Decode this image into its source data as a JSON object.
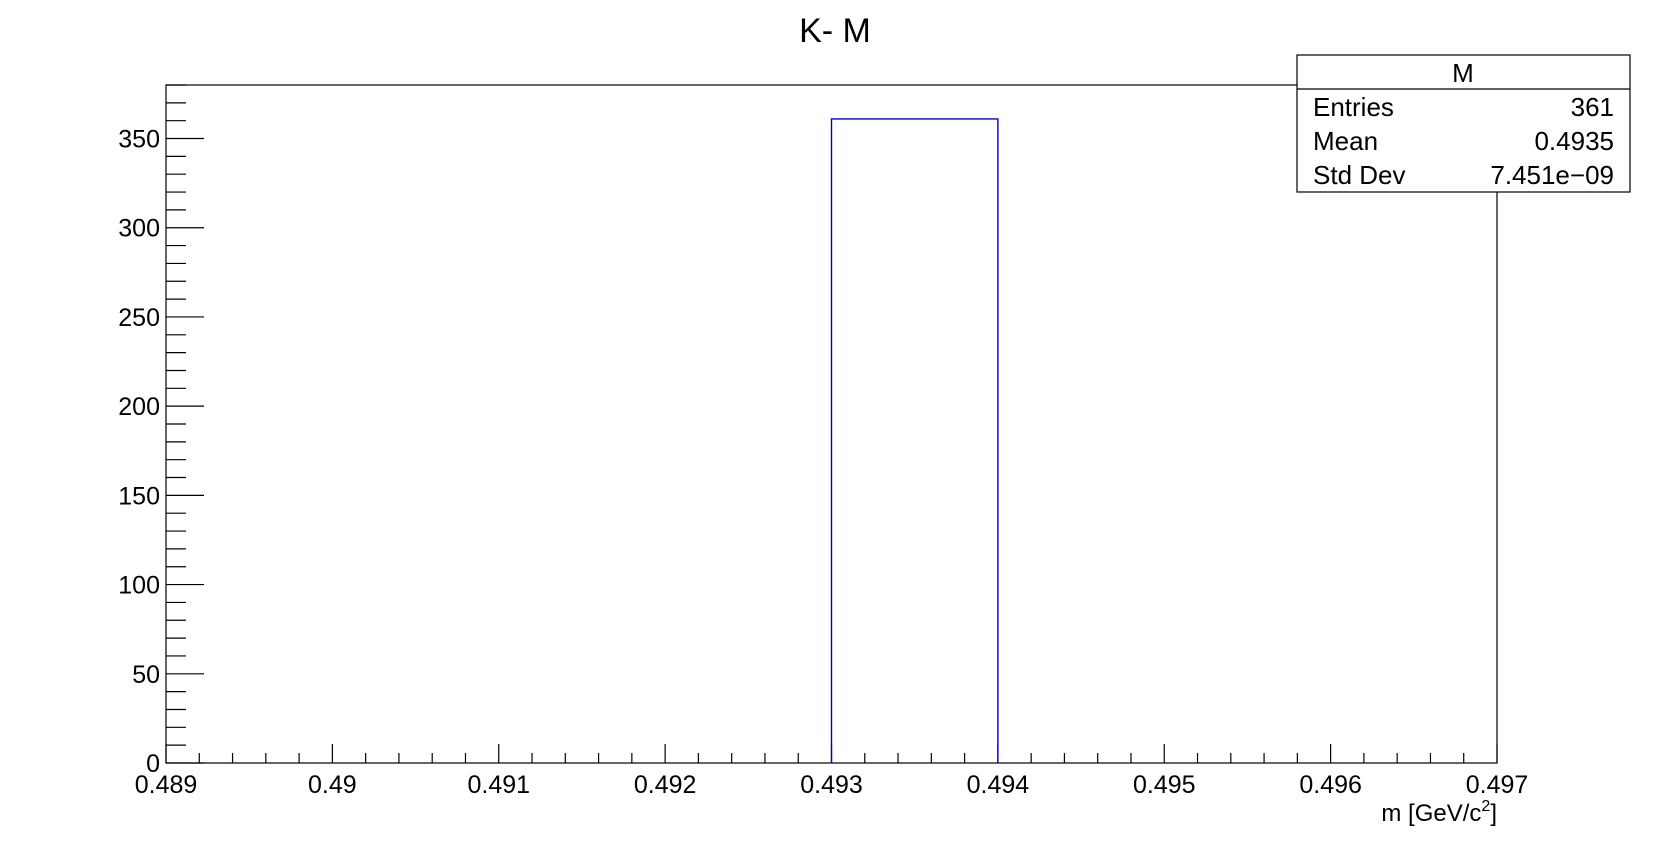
{
  "chart_data": {
    "type": "bar",
    "title": "K- M",
    "xlabel": "m [GeV/c",
    "xlabel_superscript": "2",
    "xlabel_suffix": "]",
    "ylabel": "",
    "xlim": [
      0.489,
      0.497
    ],
    "ylim": [
      0,
      380
    ],
    "x_ticks": [
      0.489,
      0.49,
      0.491,
      0.492,
      0.493,
      0.494,
      0.495,
      0.496,
      0.497
    ],
    "x_tick_labels": [
      "0.489",
      "0.49",
      "0.491",
      "0.492",
      "0.493",
      "0.494",
      "0.495",
      "0.496",
      "0.497"
    ],
    "y_ticks": [
      0,
      50,
      100,
      150,
      200,
      250,
      300,
      350
    ],
    "y_tick_labels": [
      "0",
      "50",
      "100",
      "150",
      "200",
      "250",
      "300",
      "350"
    ],
    "bins": [
      {
        "x_low": 0.493,
        "x_high": 0.494,
        "value": 361
      }
    ],
    "line_color": "#0000cc",
    "grid": false,
    "stats_box": {
      "title": "M",
      "placement": "top-right",
      "rows": [
        {
          "label": "Entries",
          "value": "361"
        },
        {
          "label": "Mean",
          "value": "0.4935"
        },
        {
          "label": "Std Dev",
          "value": "7.451e−09"
        }
      ]
    }
  }
}
